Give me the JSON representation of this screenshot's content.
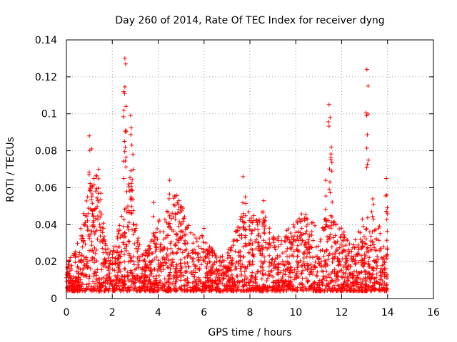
{
  "chart_data": {
    "type": "scatter",
    "title": "Day 260 of 2014, Rate Of TEC Index for receiver dyng",
    "xlabel": "GPS time / hours",
    "ylabel": "ROTI / TECUs",
    "xlim": [
      0,
      16
    ],
    "ylim": [
      0,
      0.14
    ],
    "xticks": [
      0,
      2,
      4,
      6,
      8,
      10,
      12,
      14,
      16
    ],
    "xtick_labels": [
      "0",
      "2",
      "4",
      "6",
      "8",
      "10",
      "12",
      "14",
      "16"
    ],
    "yticks": [
      0,
      0.02,
      0.04,
      0.06,
      0.08,
      0.1,
      0.12,
      0.14
    ],
    "ytick_labels": [
      "0",
      "0.02",
      "0.04",
      "0.06",
      "0.08",
      "0.1",
      "0.12",
      "0.14"
    ],
    "grid": true,
    "marker": "+",
    "color": "#ff0000",
    "series": [
      {
        "name": "ROTI",
        "data_range_x": [
          0,
          14
        ],
        "peaks": [
          {
            "x": 1.0,
            "y": 0.088
          },
          {
            "x": 1.1,
            "y": 0.081
          },
          {
            "x": 1.2,
            "y": 0.065
          },
          {
            "x": 1.4,
            "y": 0.07
          },
          {
            "x": 1.5,
            "y": 0.057
          },
          {
            "x": 2.5,
            "y": 0.112
          },
          {
            "x": 2.55,
            "y": 0.13
          },
          {
            "x": 2.58,
            "y": 0.127
          },
          {
            "x": 2.6,
            "y": 0.104
          },
          {
            "x": 2.7,
            "y": 0.062
          },
          {
            "x": 2.8,
            "y": 0.099
          },
          {
            "x": 2.85,
            "y": 0.083
          },
          {
            "x": 2.9,
            "y": 0.078
          },
          {
            "x": 3.8,
            "y": 0.052
          },
          {
            "x": 4.5,
            "y": 0.064
          },
          {
            "x": 4.9,
            "y": 0.048
          },
          {
            "x": 6.0,
            "y": 0.038
          },
          {
            "x": 7.7,
            "y": 0.066
          },
          {
            "x": 7.8,
            "y": 0.055
          },
          {
            "x": 8.6,
            "y": 0.053
          },
          {
            "x": 9.9,
            "y": 0.04
          },
          {
            "x": 10.5,
            "y": 0.043
          },
          {
            "x": 11.3,
            "y": 0.064
          },
          {
            "x": 11.45,
            "y": 0.105
          },
          {
            "x": 11.5,
            "y": 0.098
          },
          {
            "x": 11.55,
            "y": 0.082
          },
          {
            "x": 12.9,
            "y": 0.043
          },
          {
            "x": 13.1,
            "y": 0.124
          },
          {
            "x": 13.15,
            "y": 0.115
          },
          {
            "x": 13.35,
            "y": 0.054
          },
          {
            "x": 13.95,
            "y": 0.065
          },
          {
            "x": 13.97,
            "y": 0.056
          }
        ]
      }
    ]
  }
}
